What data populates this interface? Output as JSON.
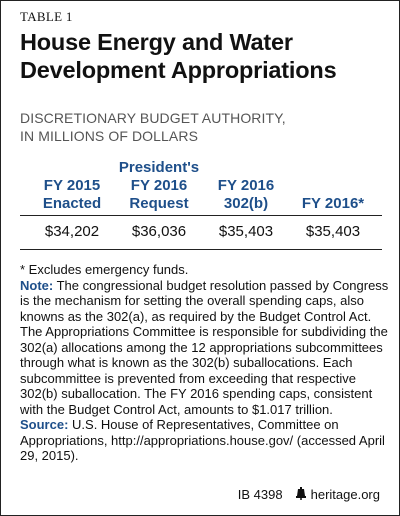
{
  "table_label": "TABLE 1",
  "title_line1": "House Energy and Water",
  "title_line2": "Development Appropriations",
  "subtitle_line1": "DISCRETIONARY BUDGET AUTHORITY,",
  "subtitle_line2": "IN MILLIONS OF DOLLARS",
  "table": {
    "columns": [
      {
        "lines": [
          "FY 2015",
          "Enacted"
        ]
      },
      {
        "lines": [
          "President's",
          "FY 2016",
          "Request"
        ]
      },
      {
        "lines": [
          "FY 2016",
          "302(b)"
        ]
      },
      {
        "lines": [
          "FY 2016*"
        ]
      }
    ],
    "values": [
      "$34,202",
      "$36,036",
      "$35,403",
      "$35,403"
    ]
  },
  "footnote": "* Excludes emergency funds.",
  "note_label": "Note:",
  "note_text": " The congressional budget resolution passed by Congress is the mechanism for setting the overall spending caps, also knowns as the 302(a), as required by the Budget Control Act. The Appropriations Committee is responsible for subdividing the 302(a) allocations among the 12 appropriations subcommittees through what is known as the 302(b) suballocations. Each subcommittee is prevented from exceeding that respective 302(b) suballocation. The FY 2016 spending caps, consistent with the Budget Control Act, amounts to $1.017 trillion.",
  "source_label": "Source:",
  "source_text": " U.S. House of Representatives, Committee on Appropriations, http://appropriations.house.gov/ (accessed April 29, 2015).",
  "footer": {
    "id": "IB 4398",
    "site": "heritage.org",
    "icon": "liberty-bell-icon"
  }
}
